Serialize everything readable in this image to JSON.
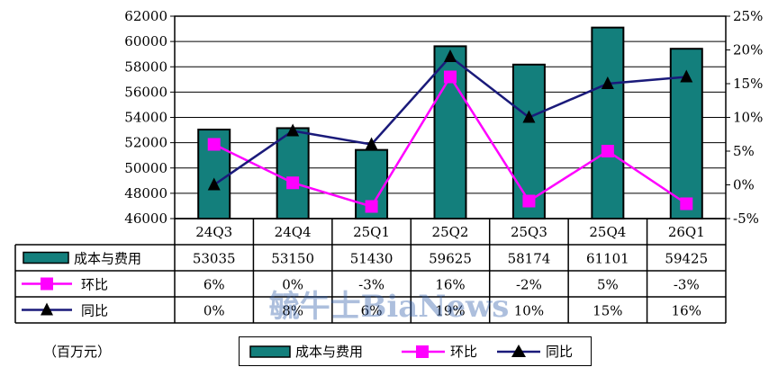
{
  "unit_label": "（百万元）",
  "watermark": "毓牛士BiaNews",
  "colors": {
    "bar_fill": "#137f7c",
    "qoq_line": "#ff00ff",
    "yoy_line": "#1a1a7a",
    "yoy_marker": "#000000"
  },
  "chart_data": {
    "type": "bar",
    "categories": [
      "24Q3",
      "24Q4",
      "25Q1",
      "25Q2",
      "25Q3",
      "25Q4",
      "26Q1"
    ],
    "series": [
      {
        "name": "成本与费用",
        "type": "bar",
        "axis": "left",
        "marker": "bar",
        "values": [
          53035,
          53150,
          51430,
          59625,
          58174,
          61101,
          59425
        ],
        "labels": [
          "53035",
          "53150",
          "51430",
          "59625",
          "58174",
          "61101",
          "59425"
        ]
      },
      {
        "name": "环比",
        "type": "line",
        "axis": "right",
        "marker": "square",
        "values": [
          6,
          0.3,
          -3.2,
          16,
          -2.4,
          5,
          -2.8
        ],
        "labels": [
          "6%",
          "0%",
          "-3%",
          "16%",
          "-2%",
          "5%",
          "-3%"
        ]
      },
      {
        "name": "同比",
        "type": "line",
        "axis": "right",
        "marker": "triangle",
        "values": [
          0,
          8,
          6,
          19,
          10,
          15,
          16
        ],
        "labels": [
          "0%",
          "8%",
          "6%",
          "19%",
          "10%",
          "15%",
          "16%"
        ]
      }
    ],
    "y_left": {
      "min": 46000,
      "max": 62000,
      "step": 2000,
      "ticks": [
        "46000",
        "48000",
        "50000",
        "52000",
        "54000",
        "56000",
        "58000",
        "60000",
        "62000"
      ]
    },
    "y_right": {
      "min": -5,
      "max": 25,
      "step": 5,
      "ticks": [
        "-5%",
        "0%",
        "5%",
        "10%",
        "15%",
        "20%",
        "25%"
      ]
    },
    "grid": true,
    "legend": "bottom"
  }
}
